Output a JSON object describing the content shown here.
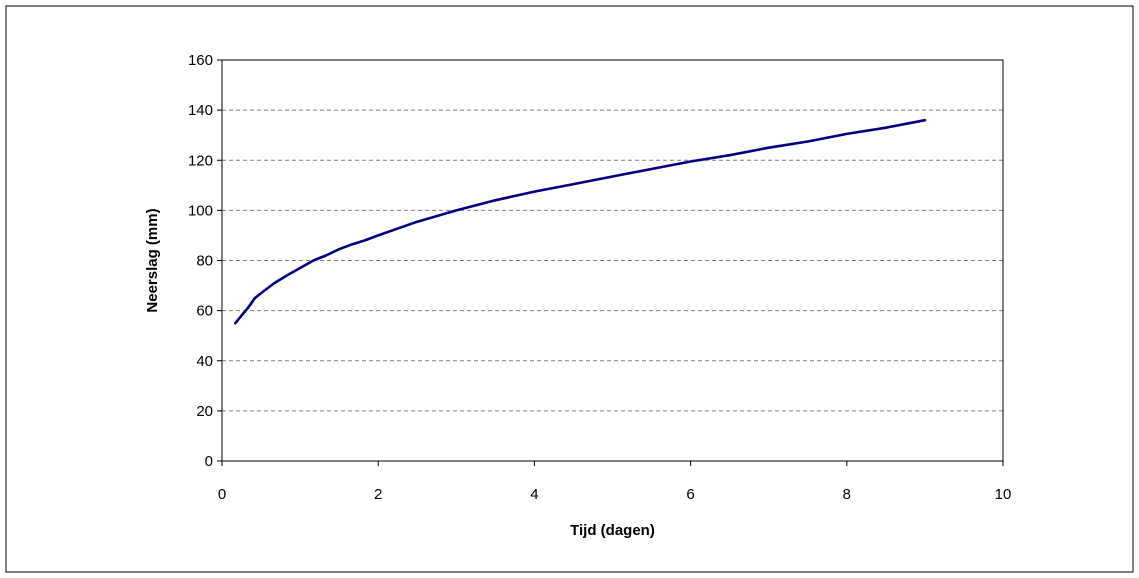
{
  "chart_data": {
    "type": "line",
    "title": "",
    "xlabel": "Tijd (dagen)",
    "ylabel": "Neerslag (mm)",
    "xlim": [
      0,
      10
    ],
    "ylim": [
      0,
      160
    ],
    "x_ticks": [
      0,
      2,
      4,
      6,
      8,
      10
    ],
    "y_ticks": [
      0,
      20,
      40,
      60,
      80,
      100,
      120,
      140,
      160
    ],
    "grid": "horizontal dashed",
    "legend": "none",
    "series": [
      {
        "color": "#000080",
        "x": [
          0.17,
          0.25,
          0.33,
          0.42,
          0.5,
          0.67,
          0.83,
          1.0,
          1.17,
          1.33,
          1.5,
          1.67,
          1.83,
          2.0,
          2.5,
          3.0,
          3.5,
          4.0,
          4.5,
          5.0,
          5.5,
          6.0,
          6.5,
          7.0,
          7.5,
          8.0,
          8.5,
          9.0
        ],
        "y": [
          55,
          58,
          61,
          65,
          67,
          71,
          74,
          77,
          80,
          82,
          84.5,
          86.5,
          88,
          90,
          95.5,
          100,
          104,
          107.5,
          110.5,
          113.5,
          116.5,
          119.5,
          122,
          125,
          127.5,
          130.5,
          133,
          136
        ]
      }
    ]
  }
}
